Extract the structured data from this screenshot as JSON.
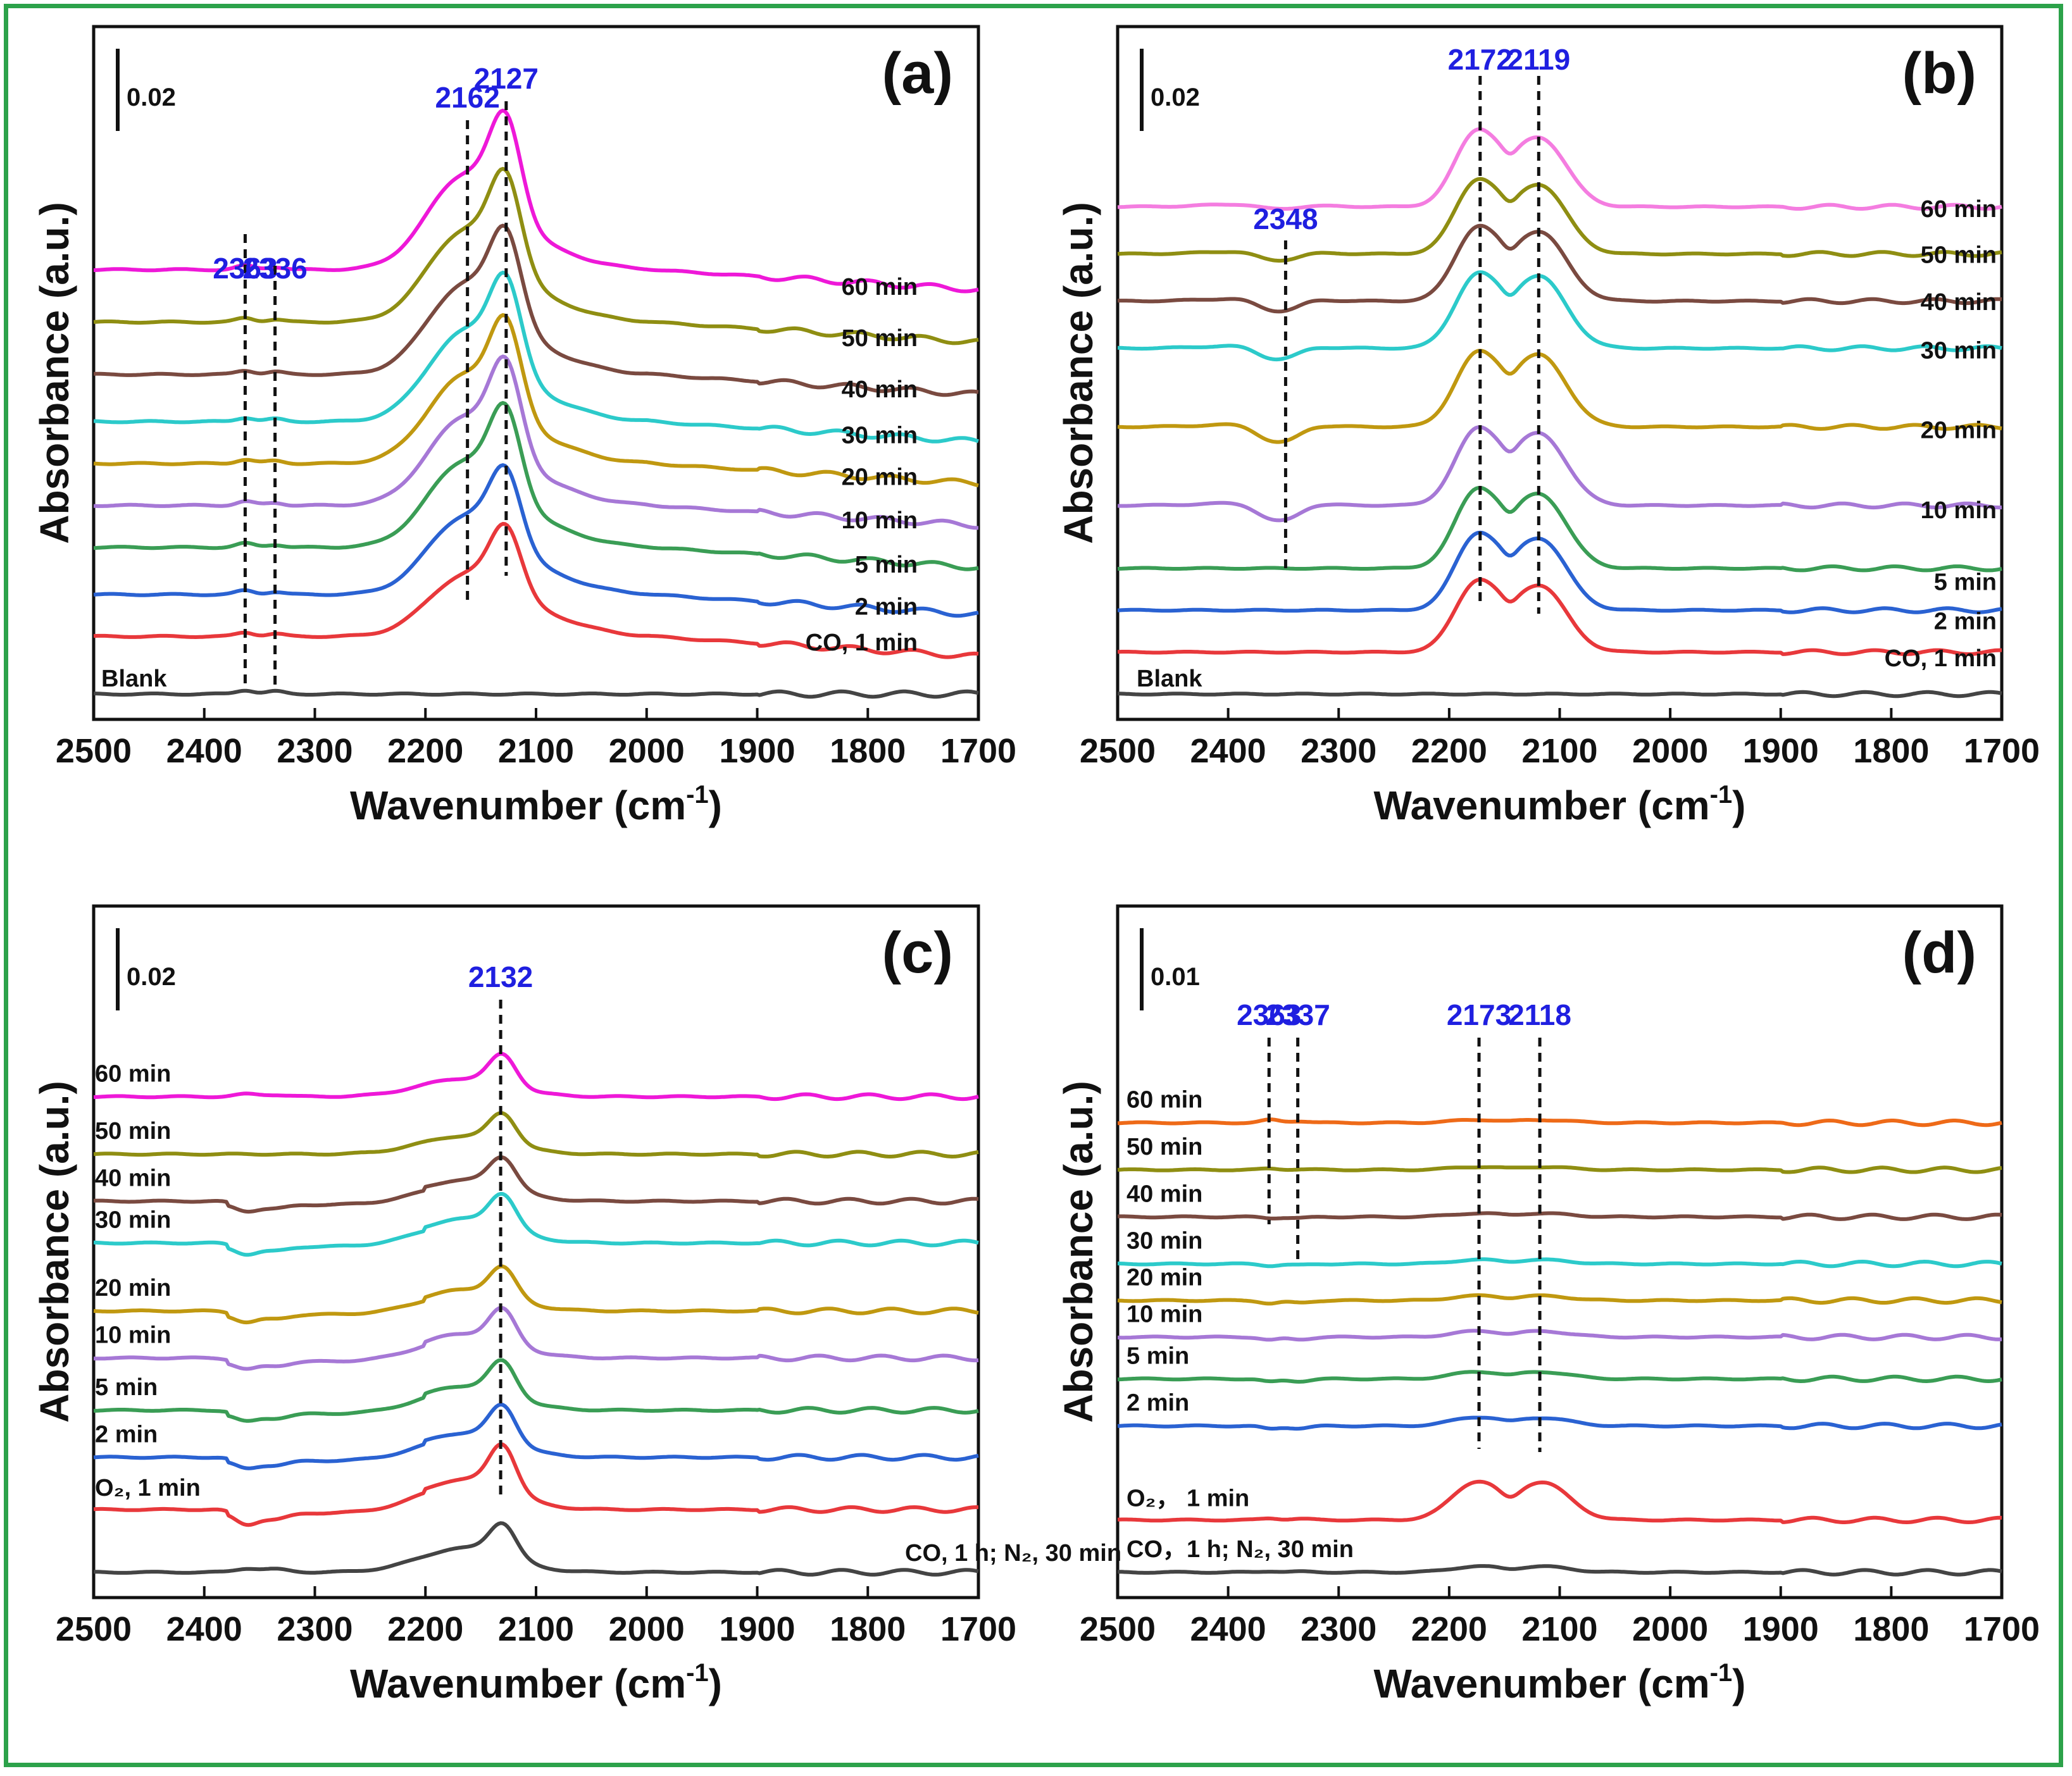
{
  "figure": {
    "border_color": "#2ca24a"
  },
  "chart_data": [
    {
      "panel": "(a)",
      "type": "line",
      "xlabel": "Wavenumber (cm",
      "xlabel_sup": "-1",
      "xlabel_end": ")",
      "ylabel": "Absorbance (a.u.)",
      "xlim": [
        2500,
        1700
      ],
      "xticks": [
        2500,
        2400,
        2300,
        2200,
        2100,
        2000,
        1900,
        1800,
        1700
      ],
      "scale_bar": "0.02",
      "peaks": [
        {
          "label": "2363",
          "x": 2363
        },
        {
          "label": "2336",
          "x": 2336
        },
        {
          "label": "2162",
          "x": 2162
        },
        {
          "label": "2127",
          "x": 2127
        }
      ],
      "series": [
        {
          "name": "Blank",
          "color": "#444444",
          "offset": 0.0,
          "p": [
            0,
            0,
            0,
            0,
            0.0,
            0.0
          ]
        },
        {
          "name": "CO, 1 min",
          "color": "#e8383b",
          "offset": 0.55,
          "p": [
            0,
            0,
            0.015,
            0.085,
            0.1,
            0.0
          ]
        },
        {
          "name": "2 min",
          "color": "#2a62d2",
          "offset": 0.95,
          "p": [
            0,
            0,
            0.02,
            0.11,
            0.11,
            0.0
          ]
        },
        {
          "name": "5 min",
          "color": "#3a9d55",
          "offset": 1.4,
          "p": [
            0,
            0,
            0.02,
            0.122,
            0.125,
            0.0
          ]
        },
        {
          "name": "10 min",
          "color": "#a678d6",
          "offset": 1.8,
          "p": [
            0,
            0,
            0.02,
            0.125,
            0.13,
            0.0
          ]
        },
        {
          "name": "20 min",
          "color": "#c09810",
          "offset": 2.2,
          "p": [
            0,
            0,
            0.02,
            0.125,
            0.13,
            0.0
          ]
        },
        {
          "name": "30 min",
          "color": "#2ccaca",
          "offset": 2.6,
          "p": [
            0,
            0,
            0.02,
            0.128,
            0.13,
            0.0
          ]
        },
        {
          "name": "40 min",
          "color": "#7a4a40",
          "offset": 3.05,
          "p": [
            0,
            0,
            0.02,
            0.128,
            0.13,
            0.0
          ]
        },
        {
          "name": "50 min",
          "color": "#8f8e12",
          "offset": 3.55,
          "p": [
            0,
            0,
            0.02,
            0.13,
            0.135,
            0.0
          ]
        },
        {
          "name": "60 min",
          "color": "#ee18d8",
          "offset": 4.05,
          "p": [
            0,
            0,
            0.02,
            0.135,
            0.14,
            0.0
          ]
        }
      ]
    },
    {
      "panel": "(b)",
      "type": "line",
      "xlabel": "Wavenumber (cm",
      "xlabel_sup": "-1",
      "xlabel_end": ")",
      "ylabel": "Absorbance (a.u.)",
      "xlim": [
        2500,
        1700
      ],
      "xticks": [
        2500,
        2400,
        2300,
        2200,
        2100,
        2000,
        1900,
        1800,
        1700
      ],
      "scale_bar": "0.02",
      "peaks": [
        {
          "label": "2348",
          "x": 2348
        },
        {
          "label": "2172",
          "x": 2172
        },
        {
          "label": "2119",
          "x": 2119
        }
      ],
      "series": [
        {
          "name": "Blank",
          "color": "#444444",
          "offset": 0.0,
          "p": [
            0,
            0,
            0,
            0,
            0.0,
            0.0
          ]
        },
        {
          "name": "CO, 1 min",
          "color": "#e8383b",
          "offset": 0.4,
          "p": [
            0,
            0,
            0,
            0,
            0.135,
            0.13
          ]
        },
        {
          "name": "2 min",
          "color": "#2a62d2",
          "offset": 0.8,
          "p": [
            0,
            0,
            0,
            0,
            0.145,
            0.14
          ]
        },
        {
          "name": "5 min",
          "color": "#3a9d55",
          "offset": 1.2,
          "p": [
            0,
            0,
            0,
            0,
            0.15,
            0.145
          ]
        },
        {
          "name": "10 min",
          "color": "#a678d6",
          "offset": 1.8,
          "p": [
            -0.028,
            -0.018,
            0,
            0,
            0.145,
            0.14
          ]
        },
        {
          "name": "20 min",
          "color": "#c09810",
          "offset": 2.55,
          "p": [
            -0.028,
            -0.018,
            0,
            0,
            0.14,
            0.14
          ]
        },
        {
          "name": "30 min",
          "color": "#2ccaca",
          "offset": 3.3,
          "p": [
            -0.022,
            -0.012,
            0,
            0,
            0.14,
            0.14
          ]
        },
        {
          "name": "40 min",
          "color": "#7a4a40",
          "offset": 3.75,
          "p": [
            -0.02,
            -0.012,
            0,
            0,
            0.14,
            0.135
          ]
        },
        {
          "name": "50 min",
          "color": "#8f8e12",
          "offset": 4.2,
          "p": [
            -0.015,
            -0.008,
            0,
            0,
            0.14,
            0.135
          ]
        },
        {
          "name": "60 min",
          "color": "#f47de0",
          "offset": 4.65,
          "p": [
            -0.008,
            -0.004,
            0,
            0,
            0.145,
            0.135
          ]
        }
      ]
    },
    {
      "panel": "(c)",
      "type": "line",
      "xlabel": "Wavenumber (cm",
      "xlabel_sup": "-1",
      "xlabel_end": ")",
      "ylabel": "Absorbance (a.u.)",
      "xlim": [
        2500,
        1700
      ],
      "xticks": [
        2500,
        2400,
        2300,
        2200,
        2100,
        2000,
        1900,
        1800,
        1700
      ],
      "scale_bar": "0.02",
      "peaks": [
        {
          "label": "2132",
          "x": 2132
        }
      ],
      "series": [
        {
          "name": "CO, 1 h; N₂, 30 min",
          "color": "#444444",
          "offset": 0.0,
          "p": [
            0.006,
            0.005,
            0,
            0.04,
            0.055,
            0.0
          ]
        },
        {
          "name": "O₂, 1 min",
          "color": "#e8383b",
          "offset": 0.6,
          "p": [
            -0.018,
            -0.01,
            0,
            0.05,
            0.075,
            0.0
          ]
        },
        {
          "name": "2 min",
          "color": "#2a62d2",
          "offset": 1.1,
          "p": [
            -0.012,
            -0.007,
            0,
            0.04,
            0.06,
            0.0
          ]
        },
        {
          "name": "5 min",
          "color": "#3a9d55",
          "offset": 1.55,
          "p": [
            -0.012,
            -0.007,
            0,
            0.04,
            0.055,
            0.0
          ]
        },
        {
          "name": "10 min",
          "color": "#a678d6",
          "offset": 2.05,
          "p": [
            -0.012,
            -0.007,
            0,
            0.04,
            0.055,
            0.0
          ]
        },
        {
          "name": "20 min",
          "color": "#c09810",
          "offset": 2.5,
          "p": [
            -0.012,
            -0.007,
            0,
            0.035,
            0.05,
            0.0
          ]
        },
        {
          "name": "30 min",
          "color": "#2ccaca",
          "offset": 3.15,
          "p": [
            -0.012,
            -0.007,
            0,
            0.04,
            0.055,
            0.0
          ]
        },
        {
          "name": "40 min",
          "color": "#7a4a40",
          "offset": 3.55,
          "p": [
            -0.01,
            -0.006,
            0,
            0.035,
            0.05,
            0.0
          ]
        },
        {
          "name": "50 min",
          "color": "#8f8e12",
          "offset": 4.0,
          "p": [
            0,
            0,
            0,
            0.03,
            0.048,
            0.0
          ]
        },
        {
          "name": "60 min",
          "color": "#ee18d8",
          "offset": 4.55,
          "p": [
            0.004,
            0.003,
            0,
            0.03,
            0.05,
            0.0
          ]
        }
      ]
    },
    {
      "panel": "(d)",
      "type": "line",
      "xlabel": "Wavenumber (cm",
      "xlabel_sup": "-1",
      "xlabel_end": ")",
      "ylabel": "Absorbance (a.u.)",
      "xlim": [
        2500,
        1700
      ],
      "xticks": [
        2500,
        2400,
        2300,
        2200,
        2100,
        2000,
        1900,
        1800,
        1700
      ],
      "scale_bar": "0.01",
      "peaks": [
        {
          "label": "2363",
          "x": 2363
        },
        {
          "label": "2337",
          "x": 2337
        },
        {
          "label": "2173",
          "x": 2173
        },
        {
          "label": "2118",
          "x": 2118
        }
      ],
      "series": [
        {
          "name": "CO，1 h; N₂, 30 min",
          "color": "#444444",
          "offset": 0.0,
          "p": [
            0.002,
            0.001,
            0,
            0,
            0.01,
            0.01
          ]
        },
        {
          "name": "O₂， 1 min",
          "color": "#e8383b",
          "offset": 0.5,
          "p": [
            0.003,
            0.002,
            0,
            0,
            0.065,
            0.065
          ]
        },
        {
          "name": "2 min",
          "color": "#2a62d2",
          "offset": 1.4,
          "p": [
            -0.005,
            -0.004,
            0,
            0,
            0.015,
            0.014
          ]
        },
        {
          "name": "5 min",
          "color": "#3a9d55",
          "offset": 1.85,
          "p": [
            -0.005,
            -0.004,
            0,
            0,
            0.012,
            0.012
          ]
        },
        {
          "name": "10 min",
          "color": "#a678d6",
          "offset": 2.25,
          "p": [
            -0.005,
            -0.004,
            0,
            0,
            0.01,
            0.01
          ]
        },
        {
          "name": "20 min",
          "color": "#c09810",
          "offset": 2.6,
          "p": [
            -0.005,
            -0.004,
            0,
            0,
            0.008,
            0.008
          ]
        },
        {
          "name": "30 min",
          "color": "#2ccaca",
          "offset": 2.95,
          "p": [
            -0.003,
            -0.002,
            0,
            0,
            0.007,
            0.007
          ]
        },
        {
          "name": "40 min",
          "color": "#7a4a40",
          "offset": 3.4,
          "p": [
            -0.002,
            -0.002,
            0,
            0,
            0.006,
            0.006
          ]
        },
        {
          "name": "50 min",
          "color": "#8f8e12",
          "offset": 3.85,
          "p": [
            0.002,
            0.001,
            0,
            0,
            0.005,
            0.005
          ]
        },
        {
          "name": "60 min",
          "color": "#ee6a18",
          "offset": 4.3,
          "p": [
            0.005,
            0.003,
            0,
            0,
            0.005,
            0.005
          ]
        }
      ]
    }
  ]
}
